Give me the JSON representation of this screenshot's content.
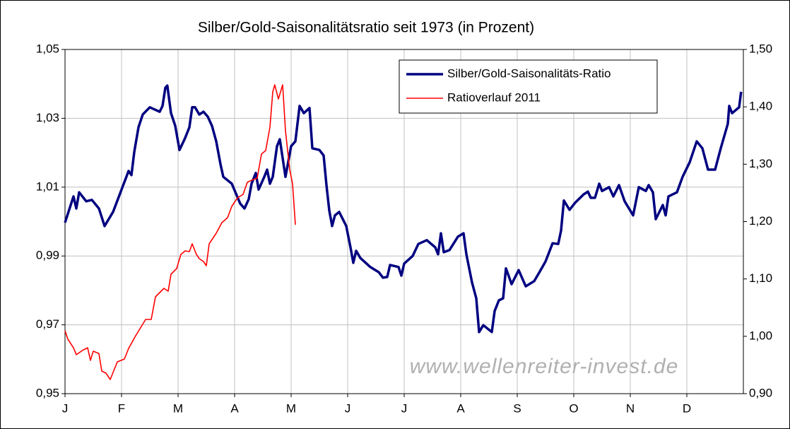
{
  "chart_data": {
    "type": "line",
    "title": "Silber/Gold-Saisonalitätsratio seit 1973 (in Prozent)",
    "watermark": "www.wellenreiter-invest.de",
    "xlim": [
      0,
      12
    ],
    "xticks": [
      {
        "value": 0,
        "label": "J"
      },
      {
        "value": 1,
        "label": "F"
      },
      {
        "value": 2,
        "label": "M"
      },
      {
        "value": 3,
        "label": "A"
      },
      {
        "value": 4,
        "label": "M"
      },
      {
        "value": 5,
        "label": "J"
      },
      {
        "value": 6,
        "label": "J"
      },
      {
        "value": 7,
        "label": "A"
      },
      {
        "value": 8,
        "label": "S"
      },
      {
        "value": 9,
        "label": "O"
      },
      {
        "value": 10,
        "label": "N"
      },
      {
        "value": 11,
        "label": "D"
      }
    ],
    "ylim": [
      0.95,
      1.05
    ],
    "yticks": [
      {
        "value": 0.95,
        "label": "0,95"
      },
      {
        "value": 0.97,
        "label": "0,97"
      },
      {
        "value": 0.99,
        "label": "0,99"
      },
      {
        "value": 1.01,
        "label": "1,01"
      },
      {
        "value": 1.03,
        "label": "1,03"
      },
      {
        "value": 1.05,
        "label": "1,05"
      }
    ],
    "y2lim": [
      0.9,
      1.5
    ],
    "y2ticks": [
      {
        "value": 0.9,
        "label": "0,90"
      },
      {
        "value": 1.0,
        "label": "1,00"
      },
      {
        "value": 1.1,
        "label": "1,10"
      },
      {
        "value": 1.2,
        "label": "1,20"
      },
      {
        "value": 1.3,
        "label": "1,30"
      },
      {
        "value": 1.4,
        "label": "1,40"
      },
      {
        "value": 1.5,
        "label": "1,50"
      }
    ],
    "grid": true,
    "legend": "upper right",
    "series": [
      {
        "name": "Silber/Gold-Saisonalitäts-Ratio",
        "color": "#000080",
        "axis": "y",
        "x": [
          0,
          0.15,
          0.2,
          0.25,
          0.375,
          0.475,
          0.6,
          0.7,
          0.85,
          1.0,
          1.125,
          1.175,
          1.225,
          1.3,
          1.375,
          1.5,
          1.675,
          1.725,
          1.775,
          1.81,
          1.875,
          1.95,
          2.025,
          2.125,
          2.2,
          2.25,
          2.3,
          2.375,
          2.45,
          2.525,
          2.6,
          2.675,
          2.75,
          2.8,
          2.95,
          3.1,
          3.175,
          3.25,
          3.3,
          3.375,
          3.425,
          3.525,
          3.575,
          3.625,
          3.675,
          3.75,
          3.8,
          3.9,
          4.0,
          4.075,
          4.15,
          4.225,
          4.325,
          4.375,
          4.5,
          4.575,
          4.625,
          4.675,
          4.725,
          4.775,
          4.85,
          4.975,
          5.05,
          5.1,
          5.15,
          5.225,
          5.4,
          5.55,
          5.625,
          5.7,
          5.75,
          5.9,
          5.95,
          6.0,
          6.15,
          6.25,
          6.4,
          6.55,
          6.6,
          6.65,
          6.7,
          6.8,
          6.95,
          7.05,
          7.1,
          7.2,
          7.275,
          7.325,
          7.4,
          7.55,
          7.6,
          7.675,
          7.75,
          7.8,
          7.825,
          7.9,
          8.025,
          8.15,
          8.3,
          8.4,
          8.5,
          8.625,
          8.725,
          8.775,
          8.825,
          8.925,
          9.025,
          9.175,
          9.25,
          9.3,
          9.375,
          9.45,
          9.5,
          9.625,
          9.7,
          9.8,
          9.9,
          10.05,
          10.15,
          10.275,
          10.325,
          10.4,
          10.45,
          10.575,
          10.625,
          10.675,
          10.825,
          10.925,
          11.05,
          11.175,
          11.275,
          11.375,
          11.5,
          11.6,
          11.725,
          11.75,
          11.8,
          11.925,
          11.96
        ],
        "values": [
          0.9997,
          1.0073,
          1.0038,
          1.0085,
          1.0059,
          1.0063,
          1.0038,
          0.9987,
          1.0028,
          1.0093,
          1.0147,
          1.0135,
          1.0202,
          1.0274,
          1.0311,
          1.0332,
          1.0319,
          1.0336,
          1.0389,
          1.0395,
          1.0315,
          1.0278,
          1.0208,
          1.0243,
          1.0274,
          1.0332,
          1.0332,
          1.0311,
          1.0319,
          1.0305,
          1.0278,
          1.0233,
          1.0167,
          1.013,
          1.011,
          1.0052,
          1.0038,
          1.0065,
          1.011,
          1.0141,
          1.0093,
          1.013,
          1.0151,
          1.011,
          1.013,
          1.0219,
          1.0239,
          1.013,
          1.0219,
          1.0233,
          1.0336,
          1.0315,
          1.033,
          1.0213,
          1.0208,
          1.0192,
          1.0106,
          1.0032,
          0.9987,
          1.0018,
          1.0028,
          0.9987,
          0.9925,
          0.988,
          0.9915,
          0.9894,
          0.9868,
          0.9853,
          0.9837,
          0.9839,
          0.9874,
          0.9868,
          0.9843,
          0.9878,
          0.99,
          0.9935,
          0.9946,
          0.9925,
          0.9905,
          0.9966,
          0.9911,
          0.9917,
          0.9956,
          0.9966,
          0.9905,
          0.9823,
          0.9777,
          0.9679,
          0.9699,
          0.9679,
          0.974,
          0.9771,
          0.9777,
          0.9864,
          0.9853,
          0.9818,
          0.9859,
          0.9812,
          0.9827,
          0.9855,
          0.9884,
          0.9937,
          0.9935,
          0.9974,
          1.0061,
          1.0034,
          1.0055,
          1.0079,
          1.0087,
          1.0069,
          1.0069,
          1.011,
          1.0089,
          1.01,
          1.0073,
          1.0106,
          1.0059,
          1.0018,
          1.01,
          1.0089,
          1.0106,
          1.0085,
          1.0007,
          1.0048,
          1.0018,
          1.0073,
          1.0085,
          1.013,
          1.0172,
          1.0233,
          1.0213,
          1.0151,
          1.0151,
          1.0213,
          1.0284,
          1.0336,
          1.0315,
          1.0332,
          1.0377
        ]
      },
      {
        "name": "Ratioverlauf 2011",
        "color": "#ff0000",
        "axis": "y2",
        "x": [
          0,
          0.05,
          0.15,
          0.2,
          0.325,
          0.4,
          0.45,
          0.5,
          0.6,
          0.65,
          0.725,
          0.8,
          0.875,
          0.925,
          1.05,
          1.125,
          1.25,
          1.35,
          1.425,
          1.525,
          1.6,
          1.75,
          1.825,
          1.875,
          1.975,
          2.05,
          2.125,
          2.2,
          2.25,
          2.325,
          2.375,
          2.45,
          2.5,
          2.55,
          2.675,
          2.775,
          2.875,
          2.95,
          3.05,
          3.15,
          3.225,
          3.3,
          3.4,
          3.475,
          3.55,
          3.625,
          3.675,
          3.71,
          3.775,
          3.85,
          3.9,
          3.975,
          4.025,
          4.075
        ],
        "values": [
          1.0097,
          0.995,
          0.98,
          0.968,
          0.9764,
          0.98,
          0.958,
          0.974,
          0.97,
          0.9394,
          0.9357,
          0.9247,
          0.9431,
          0.9555,
          0.9604,
          0.9789,
          1.001,
          1.017,
          1.0294,
          1.0294,
          1.0688,
          1.0836,
          1.0787,
          1.1082,
          1.1181,
          1.1427,
          1.1489,
          1.1477,
          1.1612,
          1.1427,
          1.1353,
          1.1304,
          1.123,
          1.1612,
          1.1797,
          1.1982,
          1.2068,
          1.2265,
          1.2413,
          1.2474,
          1.2684,
          1.2721,
          1.2758,
          1.3177,
          1.3238,
          1.3645,
          1.4261,
          1.4384,
          1.4138,
          1.4384,
          1.3583,
          1.2906,
          1.2659,
          1.1945
        ]
      }
    ]
  }
}
